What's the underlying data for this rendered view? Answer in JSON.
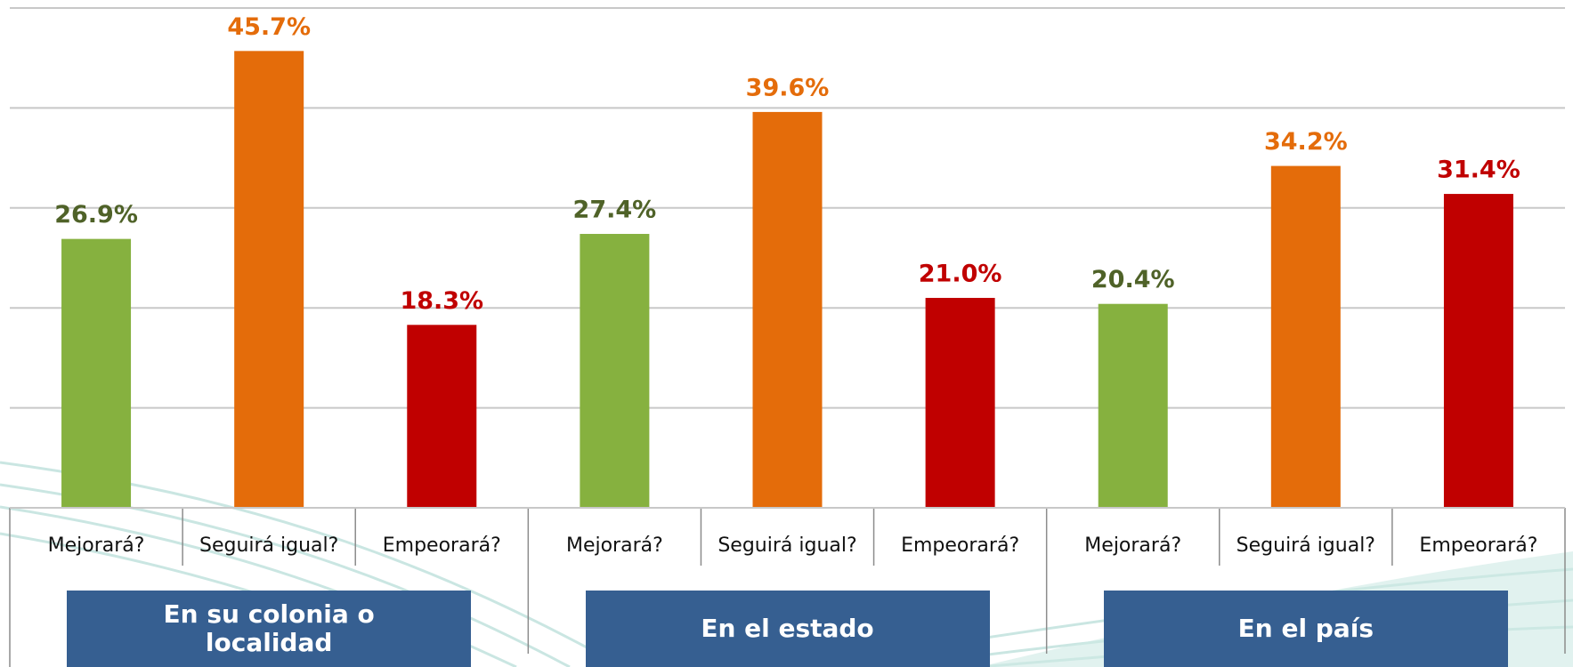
{
  "chart_data": {
    "type": "bar",
    "groups": [
      {
        "name": "En su colonia o localidad",
        "categories": [
          "Mejorará?",
          "Seguirá igual?",
          "Empeorará?"
        ],
        "values": [
          26.9,
          45.7,
          18.3
        ],
        "value_labels": [
          "26.9%",
          "45.7%",
          "18.3%"
        ]
      },
      {
        "name": "En el estado",
        "categories": [
          "Mejorará?",
          "Seguirá igual?",
          "Empeorará?"
        ],
        "values": [
          27.4,
          39.6,
          21.0
        ],
        "value_labels": [
          "27.4%",
          "39.6%",
          "21.0%"
        ]
      },
      {
        "name": "En el país",
        "categories": [
          "Mejorará?",
          "Seguirá igual?",
          "Empeorará?"
        ],
        "values": [
          20.4,
          34.2,
          31.4
        ],
        "value_labels": [
          "20.4%",
          "34.2%",
          "31.4%"
        ]
      }
    ],
    "colors": [
      "#86b13f",
      "#e46c0a",
      "#c00000"
    ],
    "label_colors": [
      "#4f6228",
      "#e46c0a",
      "#c00000"
    ],
    "ylim": [
      0,
      50
    ],
    "yticks": [
      0,
      10,
      20,
      30,
      40,
      50
    ],
    "grid": true
  }
}
